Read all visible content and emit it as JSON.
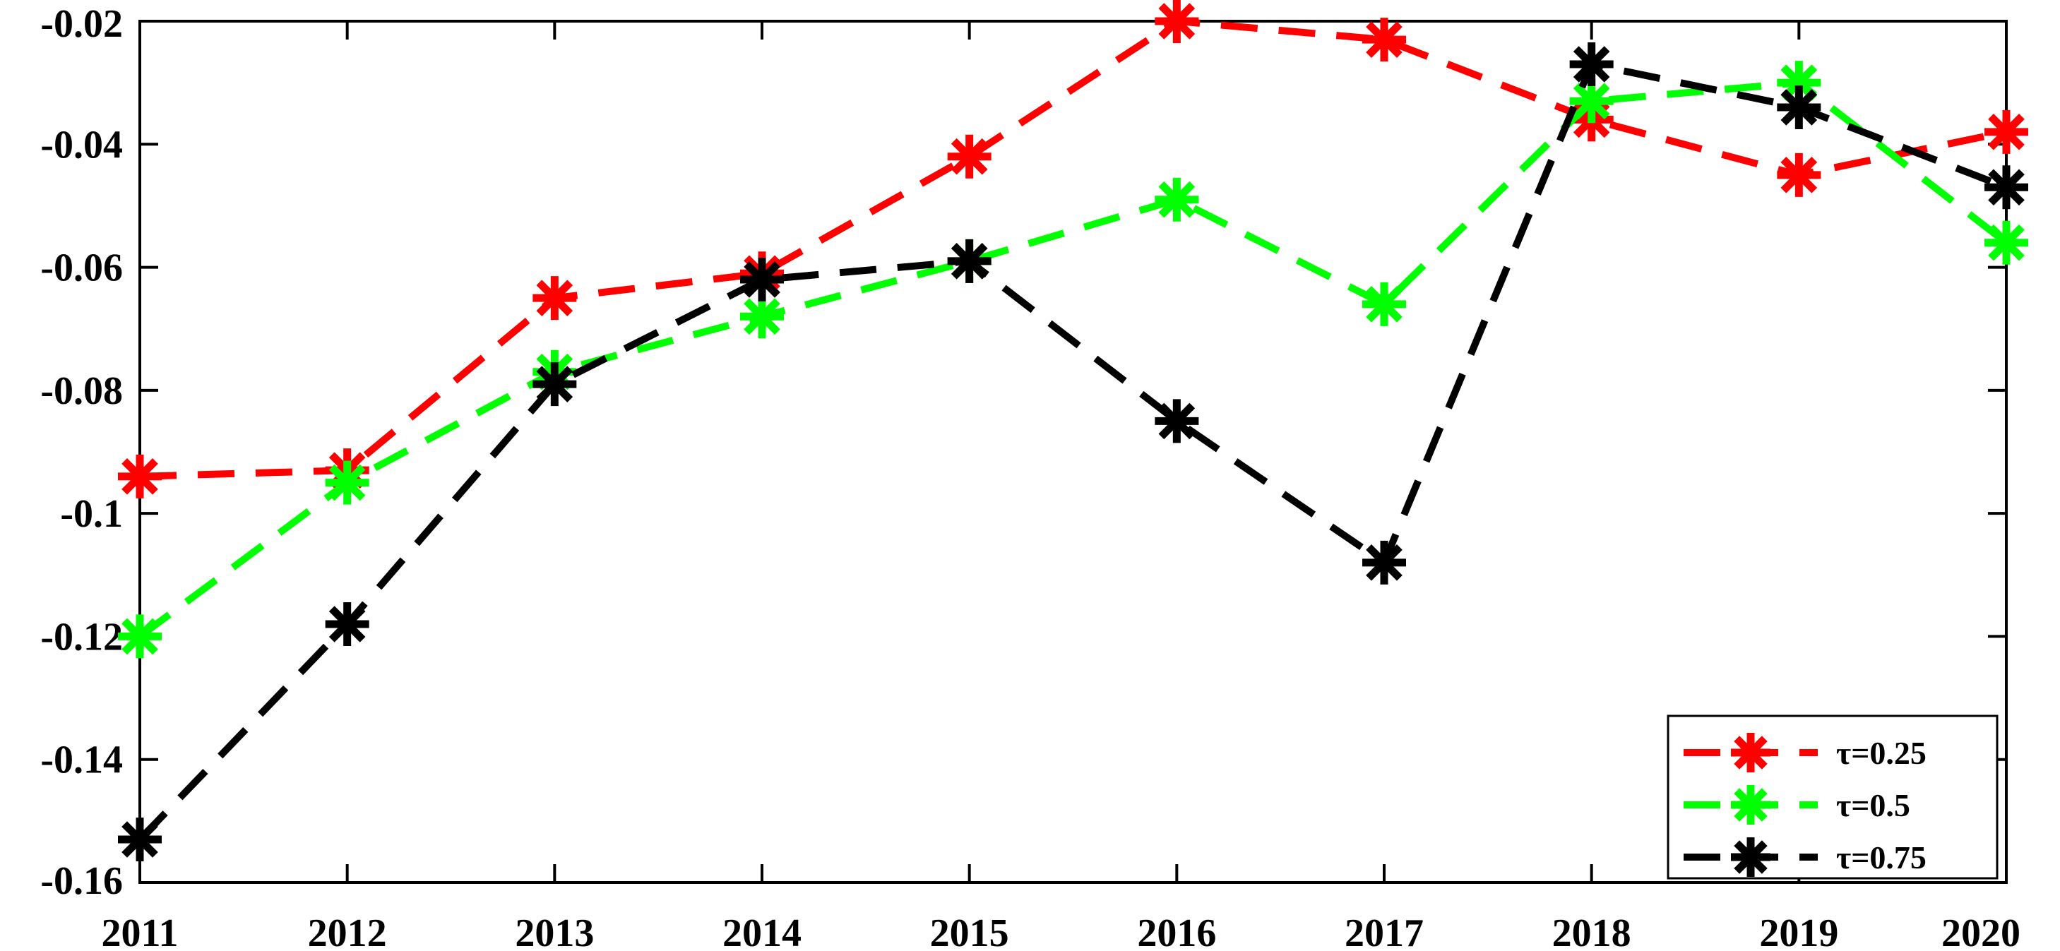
{
  "chart_data": {
    "type": "line",
    "x": [
      "2011",
      "2012",
      "2013",
      "2014",
      "2015",
      "2016",
      "2017",
      "2018",
      "2019",
      "2020"
    ],
    "ylim": [
      -0.16,
      -0.02
    ],
    "yticks": [
      -0.02,
      -0.04,
      -0.06,
      -0.08,
      -0.1,
      -0.12,
      -0.14,
      -0.16
    ],
    "ytick_labels": [
      "-0.02",
      "-0.04",
      "-0.06",
      "-0.08",
      "-0.1",
      "-0.12",
      "-0.14",
      "-0.16"
    ],
    "grid": false,
    "legend_position": "bottom-right",
    "series": [
      {
        "name": "τ=0.25",
        "color": "#ff0000",
        "values": [
          -0.094,
          -0.093,
          -0.065,
          -0.061,
          -0.042,
          -0.02,
          -0.023,
          -0.036,
          -0.045,
          -0.038
        ]
      },
      {
        "name": "τ=0.5",
        "color": "#00ff00",
        "values": [
          -0.12,
          -0.095,
          -0.077,
          -0.068,
          -0.059,
          -0.049,
          -0.066,
          -0.033,
          -0.03,
          -0.056
        ]
      },
      {
        "name": "τ=0.75",
        "color": "#000000",
        "values": [
          -0.153,
          -0.118,
          -0.079,
          -0.062,
          -0.059,
          -0.085,
          -0.108,
          -0.027,
          -0.034,
          -0.047
        ]
      }
    ]
  }
}
